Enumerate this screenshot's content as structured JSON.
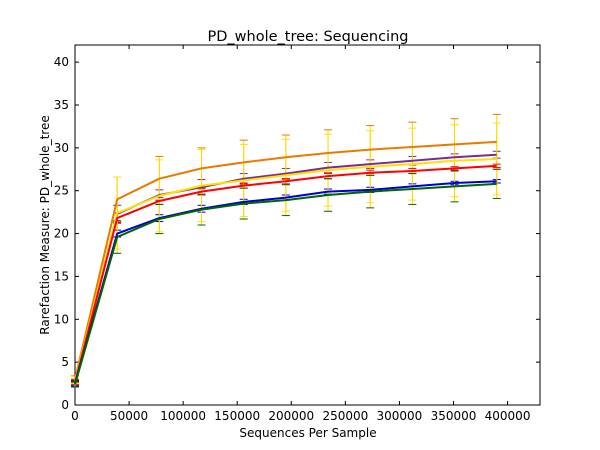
{
  "chart_data": {
    "type": "line",
    "title": "PD_whole_tree: Sequencing",
    "xlabel": "Sequences Per Sample",
    "ylabel": "Rarefaction Measure: PD_whole_tree",
    "xlim": [
      0,
      430000
    ],
    "ylim": [
      0,
      42
    ],
    "xticks": [
      0,
      50000,
      100000,
      150000,
      200000,
      250000,
      300000,
      350000,
      400000
    ],
    "yticks": [
      0,
      5,
      10,
      15,
      20,
      25,
      30,
      35,
      40
    ],
    "grid": false,
    "legend": "none",
    "error_bar_color": "#FFD700",
    "x": [
      0,
      39000,
      78000,
      117000,
      156000,
      195000,
      234000,
      273000,
      312000,
      351000,
      390000
    ],
    "series": [
      {
        "color": "#E87A00",
        "values": [
          3.0,
          24.0,
          26.4,
          27.6,
          28.3,
          28.9,
          29.4,
          29.8,
          30.1,
          30.4,
          30.7
        ],
        "errors": [
          0.4,
          2.6,
          2.6,
          2.4,
          2.6,
          2.6,
          2.7,
          2.8,
          2.9,
          3.0,
          3.2
        ]
      },
      {
        "color": "#7B2D8E",
        "values": [
          2.7,
          22.3,
          24.5,
          25.4,
          26.4,
          27.0,
          27.7,
          28.1,
          28.5,
          28.9,
          29.2
        ],
        "errors": [
          0.3,
          1.0,
          0.6,
          0.9,
          0.6,
          0.6,
          0.6,
          0.5,
          0.5,
          0.4,
          0.4
        ]
      },
      {
        "color": "#FFE000",
        "values": [
          2.8,
          22.4,
          24.4,
          25.6,
          26.2,
          26.8,
          27.4,
          27.8,
          28.1,
          28.5,
          28.7
        ],
        "errors": [
          0.3,
          4.2,
          4.2,
          4.2,
          4.2,
          4.2,
          4.2,
          4.2,
          4.2,
          4.2,
          4.2
        ]
      },
      {
        "color": "#FF0000",
        "values": [
          2.6,
          21.8,
          23.8,
          24.9,
          25.6,
          26.1,
          26.7,
          27.1,
          27.3,
          27.6,
          27.9
        ],
        "errors": [
          0.3,
          0.6,
          0.4,
          0.4,
          0.3,
          0.3,
          0.3,
          0.3,
          0.3,
          0.2,
          0.2
        ]
      },
      {
        "color": "#0000CC",
        "values": [
          2.5,
          20.0,
          21.8,
          22.9,
          23.7,
          24.2,
          24.9,
          25.1,
          25.5,
          25.9,
          26.1
        ],
        "errors": [
          0.3,
          0.4,
          0.4,
          0.4,
          0.3,
          0.3,
          0.3,
          0.3,
          0.3,
          0.2,
          0.2
        ]
      },
      {
        "color": "#006400",
        "values": [
          2.4,
          19.6,
          21.7,
          22.8,
          23.5,
          23.9,
          24.5,
          24.9,
          25.2,
          25.5,
          25.8
        ],
        "errors": [
          0.3,
          1.9,
          1.7,
          1.8,
          1.8,
          1.8,
          1.9,
          1.9,
          1.8,
          1.8,
          1.7
        ]
      }
    ]
  }
}
